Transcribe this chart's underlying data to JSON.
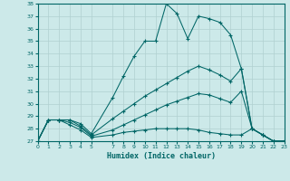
{
  "xlabel": "Humidex (Indice chaleur)",
  "xlim": [
    0,
    23
  ],
  "ylim": [
    27,
    38
  ],
  "yticks": [
    27,
    28,
    29,
    30,
    31,
    32,
    33,
    34,
    35,
    36,
    37,
    38
  ],
  "xticks": [
    0,
    1,
    2,
    3,
    4,
    5,
    7,
    8,
    9,
    10,
    11,
    12,
    13,
    14,
    15,
    16,
    17,
    18,
    19,
    20,
    21,
    22,
    23
  ],
  "background_color": "#cce9e9",
  "line_color": "#006666",
  "grid_color": "#b0d0d0",
  "lines": [
    {
      "x": [
        0,
        1,
        2,
        3,
        4,
        5,
        7,
        8,
        9,
        10,
        11,
        12,
        13,
        14,
        15,
        16,
        17,
        18,
        19,
        20,
        21,
        22,
        23
      ],
      "y": [
        27.0,
        28.7,
        28.7,
        28.7,
        28.4,
        27.6,
        30.5,
        32.2,
        33.8,
        35.0,
        35.0,
        38.0,
        37.2,
        35.2,
        37.0,
        36.8,
        36.5,
        35.5,
        32.8,
        28.0,
        27.5,
        27.0,
        27.0
      ]
    },
    {
      "x": [
        0,
        1,
        2,
        3,
        4,
        5,
        7,
        8,
        9,
        10,
        11,
        12,
        13,
        14,
        15,
        16,
        17,
        18,
        19,
        20,
        21,
        22,
        23
      ],
      "y": [
        27.0,
        28.7,
        28.7,
        28.7,
        28.2,
        27.5,
        28.8,
        29.4,
        30.0,
        30.6,
        31.1,
        31.6,
        32.1,
        32.6,
        33.0,
        32.7,
        32.3,
        31.8,
        32.8,
        28.0,
        27.5,
        27.0,
        27.0
      ]
    },
    {
      "x": [
        0,
        1,
        2,
        3,
        4,
        5,
        7,
        8,
        9,
        10,
        11,
        12,
        13,
        14,
        15,
        16,
        17,
        18,
        19,
        20,
        21,
        22,
        23
      ],
      "y": [
        27.0,
        28.7,
        28.7,
        28.5,
        28.1,
        27.4,
        27.9,
        28.3,
        28.7,
        29.1,
        29.5,
        29.9,
        30.2,
        30.5,
        30.8,
        30.7,
        30.4,
        30.1,
        31.0,
        28.0,
        27.5,
        27.0,
        27.0
      ]
    },
    {
      "x": [
        0,
        1,
        2,
        3,
        4,
        5,
        7,
        8,
        9,
        10,
        11,
        12,
        13,
        14,
        15,
        16,
        17,
        18,
        19,
        20,
        21,
        22,
        23
      ],
      "y": [
        27.0,
        28.7,
        28.7,
        28.3,
        27.9,
        27.3,
        27.5,
        27.7,
        27.8,
        27.9,
        28.0,
        28.0,
        28.0,
        28.0,
        27.9,
        27.7,
        27.6,
        27.5,
        27.5,
        28.0,
        27.5,
        27.0,
        27.0
      ]
    }
  ]
}
